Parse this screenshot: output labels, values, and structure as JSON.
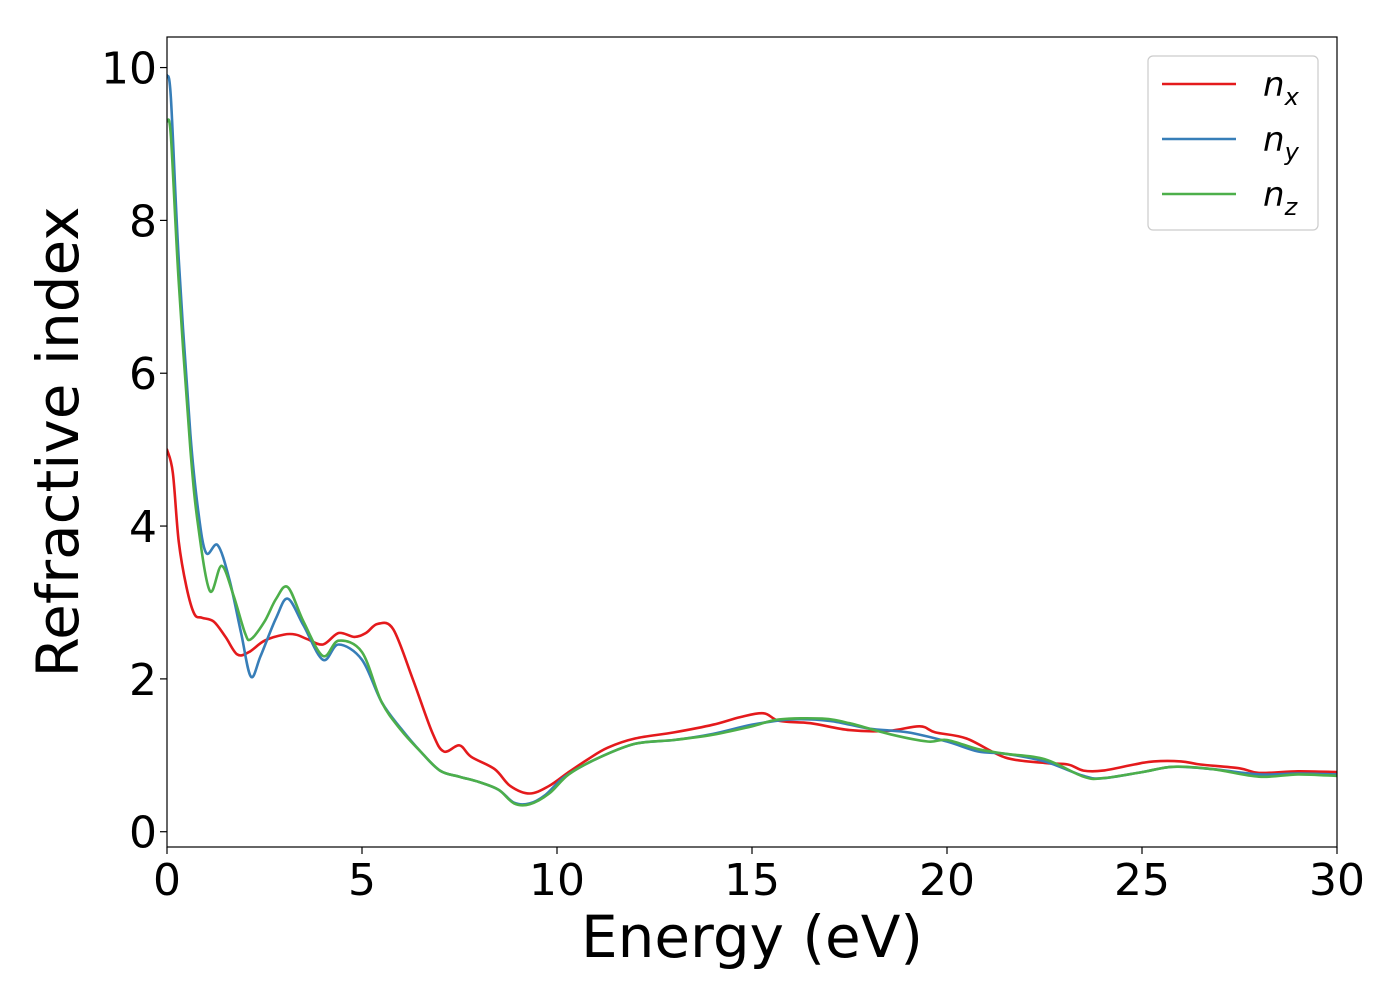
{
  "chart_data": {
    "type": "line",
    "title": "",
    "xlabel": "Energy (eV)",
    "ylabel": "Refractive index",
    "xlim": [
      0,
      30
    ],
    "ylim": [
      -0.2,
      10.4
    ],
    "x_ticks": [
      0,
      5,
      10,
      15,
      20,
      25,
      30
    ],
    "y_ticks": [
      0,
      2,
      4,
      6,
      8,
      10
    ],
    "grid": false,
    "legend_position": "top-right",
    "series": [
      {
        "name": "n_x",
        "label_base": "n",
        "label_sub": "x",
        "color": "#e41a1c",
        "points": [
          [
            0,
            5.0
          ],
          [
            0.15,
            4.7
          ],
          [
            0.3,
            3.8
          ],
          [
            0.5,
            3.2
          ],
          [
            0.7,
            2.85
          ],
          [
            0.9,
            2.8
          ],
          [
            1.2,
            2.75
          ],
          [
            1.5,
            2.55
          ],
          [
            1.8,
            2.32
          ],
          [
            2.1,
            2.35
          ],
          [
            2.5,
            2.5
          ],
          [
            3.0,
            2.58
          ],
          [
            3.3,
            2.58
          ],
          [
            3.6,
            2.52
          ],
          [
            4.0,
            2.45
          ],
          [
            4.4,
            2.6
          ],
          [
            4.8,
            2.55
          ],
          [
            5.1,
            2.6
          ],
          [
            5.4,
            2.72
          ],
          [
            5.8,
            2.65
          ],
          [
            6.3,
            2.0
          ],
          [
            6.8,
            1.3
          ],
          [
            7.1,
            1.05
          ],
          [
            7.5,
            1.13
          ],
          [
            7.8,
            0.98
          ],
          [
            8.4,
            0.82
          ],
          [
            8.8,
            0.6
          ],
          [
            9.3,
            0.5
          ],
          [
            9.8,
            0.6
          ],
          [
            10.3,
            0.78
          ],
          [
            10.8,
            0.95
          ],
          [
            11.3,
            1.1
          ],
          [
            12.0,
            1.22
          ],
          [
            13.0,
            1.3
          ],
          [
            14.0,
            1.4
          ],
          [
            14.7,
            1.5
          ],
          [
            15.3,
            1.55
          ],
          [
            15.7,
            1.45
          ],
          [
            16.5,
            1.42
          ],
          [
            17.5,
            1.33
          ],
          [
            18.5,
            1.32
          ],
          [
            19.3,
            1.38
          ],
          [
            19.7,
            1.3
          ],
          [
            20.5,
            1.22
          ],
          [
            21.5,
            0.97
          ],
          [
            22.5,
            0.9
          ],
          [
            23.1,
            0.88
          ],
          [
            23.5,
            0.8
          ],
          [
            24.0,
            0.8
          ],
          [
            24.8,
            0.88
          ],
          [
            25.3,
            0.92
          ],
          [
            26.0,
            0.92
          ],
          [
            26.5,
            0.88
          ],
          [
            27.5,
            0.83
          ],
          [
            28.0,
            0.77
          ],
          [
            29.0,
            0.79
          ],
          [
            30,
            0.78
          ]
        ]
      },
      {
        "name": "n_y",
        "label_base": "n",
        "label_sub": "y",
        "color": "#377eb8",
        "points": [
          [
            0,
            9.9
          ],
          [
            0.1,
            9.6
          ],
          [
            0.3,
            7.5
          ],
          [
            0.6,
            5.2
          ],
          [
            0.8,
            4.2
          ],
          [
            1.0,
            3.65
          ],
          [
            1.3,
            3.75
          ],
          [
            1.6,
            3.3
          ],
          [
            1.9,
            2.6
          ],
          [
            2.15,
            2.03
          ],
          [
            2.4,
            2.3
          ],
          [
            2.8,
            2.8
          ],
          [
            3.1,
            3.05
          ],
          [
            3.5,
            2.7
          ],
          [
            4.0,
            2.25
          ],
          [
            4.4,
            2.45
          ],
          [
            5.0,
            2.25
          ],
          [
            5.5,
            1.7
          ],
          [
            6.0,
            1.35
          ],
          [
            6.5,
            1.05
          ],
          [
            7.0,
            0.8
          ],
          [
            7.5,
            0.72
          ],
          [
            8.0,
            0.65
          ],
          [
            8.5,
            0.55
          ],
          [
            8.9,
            0.38
          ],
          [
            9.3,
            0.37
          ],
          [
            9.7,
            0.48
          ],
          [
            10.2,
            0.72
          ],
          [
            11.0,
            0.95
          ],
          [
            12.0,
            1.15
          ],
          [
            13.0,
            1.2
          ],
          [
            14.0,
            1.28
          ],
          [
            15.0,
            1.4
          ],
          [
            16.0,
            1.47
          ],
          [
            17.0,
            1.45
          ],
          [
            18.0,
            1.35
          ],
          [
            19.0,
            1.3
          ],
          [
            20.0,
            1.18
          ],
          [
            20.8,
            1.05
          ],
          [
            21.5,
            1.02
          ],
          [
            22.5,
            0.92
          ],
          [
            23.5,
            0.73
          ],
          [
            24.0,
            0.7
          ],
          [
            25.0,
            0.78
          ],
          [
            25.8,
            0.85
          ],
          [
            26.8,
            0.82
          ],
          [
            28.0,
            0.75
          ],
          [
            29.0,
            0.76
          ],
          [
            30,
            0.75
          ]
        ]
      },
      {
        "name": "n_z",
        "label_base": "n",
        "label_sub": "z",
        "color": "#4daf4a",
        "points": [
          [
            0,
            9.3
          ],
          [
            0.1,
            9.1
          ],
          [
            0.3,
            7.2
          ],
          [
            0.6,
            5.0
          ],
          [
            0.8,
            4.0
          ],
          [
            1.1,
            3.15
          ],
          [
            1.4,
            3.48
          ],
          [
            1.7,
            3.1
          ],
          [
            2.0,
            2.6
          ],
          [
            2.15,
            2.52
          ],
          [
            2.5,
            2.75
          ],
          [
            2.8,
            3.05
          ],
          [
            3.1,
            3.2
          ],
          [
            3.5,
            2.75
          ],
          [
            4.0,
            2.3
          ],
          [
            4.4,
            2.5
          ],
          [
            5.0,
            2.35
          ],
          [
            5.5,
            1.7
          ],
          [
            6.0,
            1.33
          ],
          [
            6.5,
            1.05
          ],
          [
            7.0,
            0.8
          ],
          [
            7.5,
            0.72
          ],
          [
            8.0,
            0.65
          ],
          [
            8.5,
            0.55
          ],
          [
            8.9,
            0.37
          ],
          [
            9.3,
            0.36
          ],
          [
            9.8,
            0.5
          ],
          [
            10.3,
            0.75
          ],
          [
            11.0,
            0.95
          ],
          [
            12.0,
            1.15
          ],
          [
            13.0,
            1.2
          ],
          [
            14.0,
            1.27
          ],
          [
            15.0,
            1.38
          ],
          [
            15.7,
            1.47
          ],
          [
            16.8,
            1.48
          ],
          [
            17.5,
            1.42
          ],
          [
            18.5,
            1.28
          ],
          [
            19.5,
            1.18
          ],
          [
            20.0,
            1.2
          ],
          [
            20.8,
            1.08
          ],
          [
            21.5,
            1.02
          ],
          [
            22.5,
            0.95
          ],
          [
            23.5,
            0.72
          ],
          [
            24.0,
            0.7
          ],
          [
            25.0,
            0.78
          ],
          [
            25.8,
            0.85
          ],
          [
            26.8,
            0.82
          ],
          [
            28.0,
            0.72
          ],
          [
            29.0,
            0.75
          ],
          [
            30,
            0.73
          ]
        ]
      }
    ]
  }
}
